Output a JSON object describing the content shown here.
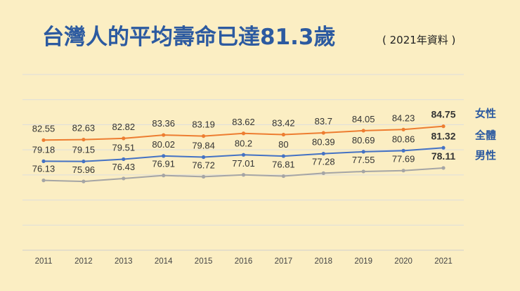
{
  "chart_data": {
    "type": "line",
    "title": "台灣人的平均壽命已達81.3歲",
    "subtitle": "( 2021年資料 )",
    "xlabel": "",
    "ylabel": "",
    "grid": true,
    "legend": "right",
    "categories": [
      "2011",
      "2012",
      "2013",
      "2014",
      "2015",
      "2016",
      "2017",
      "2018",
      "2019",
      "2020",
      "2021"
    ],
    "ylim": [
      65,
      93
    ],
    "series": [
      {
        "name": "女性",
        "color": "#ed7d31",
        "values": [
          82.55,
          82.63,
          82.82,
          83.36,
          83.19,
          83.62,
          83.42,
          83.7,
          84.05,
          84.23,
          84.75
        ],
        "labels": [
          "82.55",
          "82.63",
          "82.82",
          "83.36",
          "83.19",
          "83.62",
          "83.42",
          "83.7",
          "84.05",
          "84.23",
          "84.75"
        ]
      },
      {
        "name": "全體",
        "color": "#4472c4",
        "values": [
          79.18,
          79.15,
          79.51,
          80.02,
          79.84,
          80.2,
          80,
          80.39,
          80.69,
          80.86,
          81.32
        ],
        "labels": [
          "79.18",
          "79.15",
          "79.51",
          "80.02",
          "79.84",
          "80.2",
          "80",
          "80.39",
          "80.69",
          "80.86",
          "81.32"
        ]
      },
      {
        "name": "男性",
        "color": "#a5a5a5",
        "values": [
          76.13,
          75.96,
          76.43,
          76.91,
          76.72,
          77.01,
          76.81,
          77.28,
          77.55,
          77.69,
          78.11
        ],
        "labels": [
          "76.13",
          "75.96",
          "76.43",
          "76.91",
          "76.72",
          "77.01",
          "76.81",
          "77.28",
          "77.55",
          "77.69",
          "78.11"
        ]
      }
    ]
  },
  "colors": {
    "background": "#fbeec3",
    "title": "#2c5aa0",
    "grid": "#dddddd",
    "legend": "#2c5aa0"
  }
}
